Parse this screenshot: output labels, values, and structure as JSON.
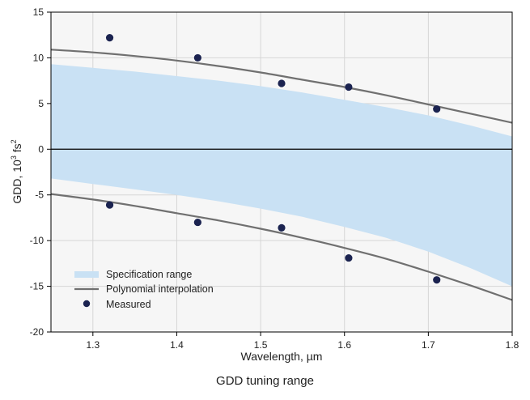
{
  "chart_data": {
    "type": "line",
    "title": "",
    "caption": "GDD tuning range",
    "xlabel": "Wavelength, µm",
    "ylabel_main": "GDD, 10",
    "ylabel_sup": "3",
    "ylabel_unit": " fs",
    "ylabel_unit_sup": "2",
    "xlim": [
      1.25,
      1.8
    ],
    "ylim": [
      -20,
      15
    ],
    "xticks": [
      1.3,
      1.4,
      1.5,
      1.6,
      1.7,
      1.8
    ],
    "xtick_labels": [
      "1.3",
      "1.4",
      "1.5",
      "1.6",
      "1.7",
      "1.8"
    ],
    "yticks": [
      -20,
      -15,
      -10,
      -5,
      0,
      5,
      10,
      15
    ],
    "ytick_labels": [
      "-20",
      "-15",
      "-10",
      "-5",
      "0",
      "5",
      "10",
      "15"
    ],
    "grid": true,
    "legend_position": "bottom-left",
    "legend": [
      {
        "label": "Specification range",
        "kind": "band"
      },
      {
        "label": "Polynomial interpolation",
        "kind": "line"
      },
      {
        "label": "Measured",
        "kind": "marker"
      }
    ],
    "band": {
      "x": [
        1.25,
        1.3,
        1.35,
        1.4,
        1.45,
        1.5,
        1.55,
        1.6,
        1.65,
        1.7,
        1.75,
        1.8
      ],
      "upper": [
        9.3,
        8.9,
        8.5,
        8.0,
        7.5,
        6.9,
        6.2,
        5.4,
        4.6,
        3.7,
        2.6,
        1.4
      ],
      "lower": [
        -3.2,
        -3.8,
        -4.4,
        -5.0,
        -5.7,
        -6.5,
        -7.4,
        -8.5,
        -9.7,
        -11.2,
        -13.0,
        -15.0
      ]
    },
    "series": [
      {
        "name": "Polynomial interpolation",
        "x": [
          1.25,
          1.3,
          1.35,
          1.4,
          1.45,
          1.5,
          1.55,
          1.6,
          1.65,
          1.7,
          1.75,
          1.8
        ],
        "y": [
          10.9,
          10.6,
          10.2,
          9.7,
          9.1,
          8.4,
          7.6,
          6.8,
          5.9,
          4.9,
          3.9,
          2.9
        ]
      },
      {
        "name": "Polynomial interpolation",
        "x": [
          1.25,
          1.3,
          1.35,
          1.4,
          1.45,
          1.5,
          1.55,
          1.6,
          1.65,
          1.7,
          1.75,
          1.8
        ],
        "y": [
          -4.9,
          -5.5,
          -6.2,
          -7.0,
          -7.8,
          -8.7,
          -9.7,
          -10.8,
          -12.0,
          -13.4,
          -14.9,
          -16.5
        ]
      }
    ],
    "measured": {
      "name": "Measured",
      "x": [
        1.32,
        1.425,
        1.525,
        1.605,
        1.71,
        1.32,
        1.425,
        1.525,
        1.605,
        1.71
      ],
      "y": [
        12.2,
        10.0,
        7.2,
        6.8,
        4.4,
        -6.1,
        -8.0,
        -8.6,
        -11.9,
        -14.3
      ]
    },
    "colors": {
      "band": "#c9e1f4",
      "plot_bg": "#f6f6f6",
      "line": "#707070",
      "marker": "#1b2350",
      "grid": "#d6d6d6",
      "zero_line": "#000000"
    }
  }
}
